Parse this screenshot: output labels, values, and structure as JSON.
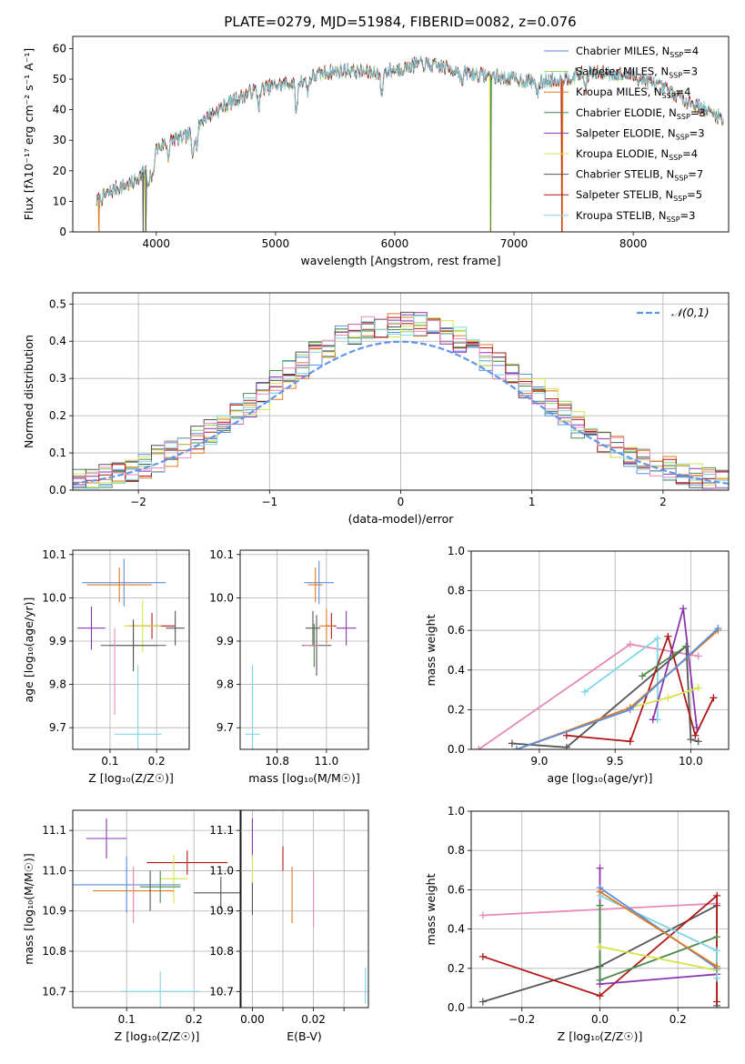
{
  "figure_title": "PLATE=0279, MJD=51984, FIBERID=0082, z=0.076",
  "colors": {
    "Chabrier MILES": "#5b8ee0",
    "Salpeter MILES": "#8bd46a",
    "Kroupa MILES": "#e07a1f",
    "Chabrier ELODIE": "#4c8a4c",
    "Salpeter ELODIE": "#8b35b0",
    "Kroupa ELODIE": "#d6e34a",
    "Chabrier STELIB": "#555555",
    "Salpeter STELIB": "#b01818",
    "Kroupa STELIB": "#7fd6e6",
    "Pink": "#e68ab8"
  },
  "chart_data": [
    {
      "id": "spectrum",
      "type": "line",
      "title": "PLATE=0279, MJD=51984, FIBERID=0082, z=0.076",
      "xlabel": "wavelength [Angstrom, rest frame]",
      "ylabel": "Flux [fλ10⁻¹⁷ erg cm⁻² s⁻¹ A⁻¹]",
      "xlim": [
        3300,
        8800
      ],
      "ylim": [
        0,
        64
      ],
      "xticks": [
        4000,
        5000,
        6000,
        7000,
        8000
      ],
      "yticks": [
        0,
        10,
        20,
        30,
        40,
        50,
        60
      ],
      "grid": false,
      "legend_position": "top-right",
      "legend": [
        {
          "key": "Chabrier MILES",
          "label": "Chabrier MILES, N",
          "sub": "SSP",
          "suffix": "=4"
        },
        {
          "key": "Salpeter MILES",
          "label": "Salpeter MILES, N",
          "sub": "SSP",
          "suffix": "=3"
        },
        {
          "key": "Kroupa MILES",
          "label": "Kroupa MILES, N",
          "sub": "SSP",
          "suffix": "=4"
        },
        {
          "key": "Chabrier ELODIE",
          "label": "Chabrier ELODIE, N",
          "sub": "SSP",
          "suffix": "=3"
        },
        {
          "key": "Salpeter ELODIE",
          "label": "Salpeter ELODIE, N",
          "sub": "SSP",
          "suffix": "=3"
        },
        {
          "key": "Kroupa ELODIE",
          "label": "Kroupa ELODIE, N",
          "sub": "SSP",
          "suffix": "=4"
        },
        {
          "key": "Chabrier STELIB",
          "label": "Chabrier STELIB, N",
          "sub": "SSP",
          "suffix": "=7"
        },
        {
          "key": "Salpeter STELIB",
          "label": "Salpeter STELIB, N",
          "sub": "SSP",
          "suffix": "=5"
        },
        {
          "key": "Kroupa STELIB",
          "label": "Kroupa STELIB, N",
          "sub": "SSP",
          "suffix": "=3"
        }
      ],
      "continuum": [
        [
          3500,
          10
        ],
        [
          3650,
          14
        ],
        [
          3800,
          16
        ],
        [
          3950,
          22
        ],
        [
          4000,
          27
        ],
        [
          4100,
          30
        ],
        [
          4250,
          31
        ],
        [
          4400,
          37
        ],
        [
          4600,
          42
        ],
        [
          4800,
          46
        ],
        [
          5000,
          48
        ],
        [
          5175,
          49
        ],
        [
          5400,
          52
        ],
        [
          5600,
          53
        ],
        [
          5800,
          52
        ],
        [
          6000,
          53
        ],
        [
          6200,
          55
        ],
        [
          6400,
          54
        ],
        [
          6600,
          52
        ],
        [
          6800,
          51
        ],
        [
          7000,
          50
        ],
        [
          7200,
          49
        ],
        [
          7400,
          50
        ],
        [
          7600,
          52
        ],
        [
          7800,
          52
        ],
        [
          8000,
          51
        ],
        [
          8200,
          48
        ],
        [
          8400,
          44
        ],
        [
          8600,
          40
        ],
        [
          8750,
          37
        ]
      ],
      "absorption_lines": [
        [
          3934,
          8
        ],
        [
          3969,
          7
        ],
        [
          4102,
          5
        ],
        [
          4304,
          8
        ],
        [
          4340,
          6
        ],
        [
          4861,
          5
        ],
        [
          5175,
          10
        ],
        [
          5270,
          4
        ],
        [
          5890,
          8
        ],
        [
          6563,
          4
        ],
        [
          7200,
          4
        ],
        [
          7600,
          5
        ]
      ],
      "dropouts": [
        {
          "series": "Kroupa MILES",
          "x": 3520
        },
        {
          "series": "Chabrier STELIB",
          "x": 3890
        },
        {
          "series": "Kroupa ELODIE",
          "x": 3910
        },
        {
          "series": "Chabrier STELIB",
          "x": 3912
        },
        {
          "series": "Kroupa ELODIE",
          "x": 6800
        },
        {
          "series": "Chabrier ELODIE",
          "x": 6805
        },
        {
          "series": "Salpeter STELIB",
          "x": 7400
        },
        {
          "series": "Kroupa MILES",
          "x": 7405
        }
      ]
    },
    {
      "id": "residuals",
      "type": "histogram",
      "xlabel": "(data-model)/error",
      "ylabel": "Normed distribution",
      "xlim": [
        -2.5,
        2.5
      ],
      "ylim": [
        0,
        0.53
      ],
      "xticks": [
        -2,
        -1,
        0,
        1,
        2
      ],
      "yticks": [
        0.0,
        0.1,
        0.2,
        0.3,
        0.4,
        0.5
      ],
      "grid": true,
      "bin_width": 0.1,
      "legend_position": "top-right",
      "gaussian": {
        "label": "𝒩(0,1)",
        "mean": 0,
        "sigma": 1
      }
    },
    {
      "id": "Z-age",
      "type": "errorbar",
      "xlabel": "Z [log₁₀(Z/Z☉)]",
      "ylabel": "age  [log₁₀(age/yr)]",
      "xlim": [
        0.02,
        0.27
      ],
      "ylim": [
        9.65,
        10.11
      ],
      "xticks": [
        0.1,
        0.2
      ],
      "yticks": [
        9.7,
        9.8,
        9.9,
        10.0,
        10.1
      ],
      "grid": true,
      "points": [
        {
          "series": "Chabrier MILES",
          "x": 0.13,
          "y": 10.035,
          "xerr": 0.09,
          "yerr": 0.055
        },
        {
          "series": "Kroupa MILES",
          "x": 0.12,
          "y": 10.03,
          "xerr": 0.07,
          "yerr": 0.04
        },
        {
          "series": "Chabrier STELIB",
          "x": 0.24,
          "y": 9.93,
          "xerr": 0.02,
          "yerr": 0.04
        },
        {
          "series": "Salpeter ELODIE",
          "x": 0.06,
          "y": 9.93,
          "xerr": 0.03,
          "yerr": 0.05
        },
        {
          "series": "Salpeter STELIB",
          "x": 0.19,
          "y": 9.935,
          "xerr": 0.05,
          "yerr": 0.03
        },
        {
          "series": "Kroupa ELODIE",
          "x": 0.17,
          "y": 9.935,
          "xerr": 0.04,
          "yerr": 0.06
        },
        {
          "series": "Chabrier ELODIE",
          "x": 0.15,
          "y": 9.89,
          "xerr": 0.05,
          "yerr": 0.05
        },
        {
          "series": "Chabrier STELIB",
          "x": 0.15,
          "y": 9.89,
          "xerr": 0.07,
          "yerr": 0.06
        },
        {
          "series": "Pink",
          "x": 0.11,
          "y": 9.83,
          "xerr": 0.0,
          "yerr": 0.1
        },
        {
          "series": "Kroupa STELIB",
          "x": 0.16,
          "y": 9.685,
          "xerr": 0.05,
          "yerr": 0.16
        }
      ]
    },
    {
      "id": "mass-age",
      "type": "errorbar",
      "xlabel": "mass [log₁₀(M/M☉)]",
      "ylabel": "",
      "xlim": [
        10.65,
        11.17
      ],
      "ylim": [
        9.65,
        10.11
      ],
      "xticks": [
        10.8,
        11.0
      ],
      "yticks": [
        9.7,
        9.8,
        9.9,
        10.0,
        10.1
      ],
      "grid": true,
      "points": [
        {
          "series": "Chabrier MILES",
          "x": 10.97,
          "y": 10.035,
          "xerr": 0.06,
          "yerr": 0.05
        },
        {
          "series": "Kroupa MILES",
          "x": 10.955,
          "y": 10.03,
          "xerr": 0.03,
          "yerr": 0.04
        },
        {
          "series": "Salpeter ELODIE",
          "x": 11.08,
          "y": 9.93,
          "xerr": 0.04,
          "yerr": 0.04
        },
        {
          "series": "Salpeter STELIB",
          "x": 11.02,
          "y": 9.935,
          "xerr": 0.02,
          "yerr": 0.03
        },
        {
          "series": "Kroupa MILES",
          "x": 11.0,
          "y": 9.935,
          "xerr": 0.03,
          "yerr": 0.04
        },
        {
          "series": "Chabrier STELIB",
          "x": 10.945,
          "y": 9.93,
          "xerr": 0.03,
          "yerr": 0.04
        },
        {
          "series": "Chabrier ELODIE",
          "x": 10.95,
          "y": 9.89,
          "xerr": 0.02,
          "yerr": 0.05
        },
        {
          "series": "Chabrier STELIB",
          "x": 10.96,
          "y": 9.89,
          "xerr": 0.06,
          "yerr": 0.07
        },
        {
          "series": "Pink",
          "x": 10.94,
          "y": 9.89,
          "xerr": 0.03,
          "yerr": 0.0
        },
        {
          "series": "Kroupa STELIB",
          "x": 10.7,
          "y": 9.685,
          "xerr": 0.03,
          "yerr": 0.16
        }
      ]
    },
    {
      "id": "age-massweight",
      "type": "line",
      "xlabel": "age  [log₁₀(age/yr)]",
      "ylabel": "mass weight",
      "xlim": [
        8.55,
        10.25
      ],
      "ylim": [
        0,
        1.0
      ],
      "xticks": [
        9.0,
        9.5,
        10.0
      ],
      "yticks": [
        0.0,
        0.2,
        0.4,
        0.6,
        0.8,
        1.0
      ],
      "grid": true,
      "series": [
        {
          "series": "Pink",
          "points": [
            [
              8.6,
              0.0
            ],
            [
              9.6,
              0.53
            ],
            [
              10.05,
              0.47
            ]
          ]
        },
        {
          "series": "Kroupa STELIB",
          "points": [
            [
              9.3,
              0.29
            ],
            [
              9.78,
              0.56
            ],
            [
              9.78,
              0.15
            ]
          ]
        },
        {
          "series": "Chabrier STELIB",
          "points": [
            [
              8.82,
              0.03
            ],
            [
              9.18,
              0.01
            ],
            [
              9.97,
              0.52
            ],
            [
              10.0,
              0.05
            ],
            [
              10.05,
              0.04
            ]
          ]
        },
        {
          "series": "Salpeter STELIB",
          "points": [
            [
              9.18,
              0.07
            ],
            [
              9.6,
              0.04
            ],
            [
              9.85,
              0.57
            ],
            [
              10.03,
              0.07
            ],
            [
              10.15,
              0.26
            ]
          ]
        },
        {
          "series": "Salpeter ELODIE",
          "points": [
            [
              9.75,
              0.15
            ],
            [
              9.95,
              0.71
            ],
            [
              10.04,
              0.11
            ]
          ]
        },
        {
          "series": "Chabrier ELODIE",
          "points": [
            [
              9.68,
              0.37
            ],
            [
              9.97,
              0.52
            ]
          ]
        },
        {
          "series": "Kroupa ELODIE",
          "points": [
            [
              9.6,
              0.21
            ],
            [
              9.85,
              0.26
            ],
            [
              10.05,
              0.31
            ]
          ]
        },
        {
          "series": "Kroupa MILES",
          "points": [
            [
              8.85,
              0.0
            ],
            [
              9.6,
              0.21
            ],
            [
              10.18,
              0.6
            ]
          ]
        },
        {
          "series": "Chabrier MILES",
          "points": [
            [
              8.85,
              0.0
            ],
            [
              9.6,
              0.2
            ],
            [
              10.18,
              0.61
            ]
          ]
        }
      ]
    },
    {
      "id": "Z-mass",
      "type": "errorbar",
      "xlabel": "Z [log₁₀(Z/Z☉)]",
      "ylabel": "mass [log₁₀(M/M☉)]",
      "xlim": [
        0.02,
        0.27
      ],
      "ylim": [
        10.66,
        11.15
      ],
      "xticks": [
        0.1,
        0.2
      ],
      "yticks": [
        10.7,
        10.8,
        10.9,
        11.0,
        11.1
      ],
      "grid": true,
      "points": [
        {
          "series": "Salpeter ELODIE",
          "x": 0.07,
          "y": 11.08,
          "xerr": 0.03,
          "yerr": 0.05
        },
        {
          "series": "Salpeter STELIB",
          "x": 0.19,
          "y": 11.02,
          "xerr": 0.06,
          "yerr": 0.03
        },
        {
          "series": "Kroupa ELODIE",
          "x": 0.17,
          "y": 10.98,
          "xerr": 0.02,
          "yerr": 0.06
        },
        {
          "series": "Chabrier MILES",
          "x": 0.1,
          "y": 10.965,
          "xerr": 0.08,
          "yerr": 0.07
        },
        {
          "series": "Kroupa MILES",
          "x": 0.11,
          "y": 10.95,
          "xerr": 0.06,
          "yerr": 0.05
        },
        {
          "series": "Chabrier STELIB",
          "x": 0.24,
          "y": 10.945,
          "xerr": 0.04,
          "yerr": 0.04
        },
        {
          "series": "Chabrier ELODIE",
          "x": 0.15,
          "y": 10.96,
          "xerr": 0.03,
          "yerr": 0.04
        },
        {
          "series": "Chabrier STELIB",
          "x": 0.135,
          "y": 10.95,
          "xerr": 0.0,
          "yerr": 0.05
        },
        {
          "series": "Pink",
          "x": 0.11,
          "y": 10.94,
          "xerr": 0.0,
          "yerr": 0.07
        },
        {
          "series": "Kroupa STELIB",
          "x": 0.15,
          "y": 10.7,
          "xerr": 0.06,
          "yerr": 0.05
        }
      ]
    },
    {
      "id": "EBV-mass",
      "type": "errorbar",
      "xlabel": "E(B-V)",
      "ylabel": "",
      "xlim": [
        -0.004,
        0.038
      ],
      "ylim": [
        10.66,
        11.15
      ],
      "xticks": [
        0.0,
        0.01,
        0.02,
        0.03
      ],
      "xticklabels": [
        "0.00",
        "",
        "0.02",
        ""
      ],
      "yticks": [
        10.7,
        10.8,
        10.9,
        11.0,
        11.1
      ],
      "grid": true,
      "points": [
        {
          "series": "Salpeter ELODIE",
          "x": 0.0,
          "y": 11.08,
          "xerr": 0.0,
          "yerr": 0.05
        },
        {
          "series": "Kroupa ELODIE",
          "x": 0.0,
          "y": 11.0,
          "xerr": 0.0,
          "yerr": 0.04
        },
        {
          "series": "Chabrier STELIB",
          "x": 0.0,
          "y": 10.93,
          "xerr": 0.0,
          "yerr": 0.04
        },
        {
          "series": "Salpeter STELIB",
          "x": 0.01,
          "y": 11.03,
          "xerr": 0.0,
          "yerr": 0.03
        },
        {
          "series": "Kroupa MILES",
          "x": 0.013,
          "y": 10.94,
          "xerr": 0.0,
          "yerr": 0.07
        },
        {
          "series": "Pink",
          "x": 0.02,
          "y": 10.93,
          "xerr": 0.0,
          "yerr": 0.07
        },
        {
          "series": "Kroupa STELIB",
          "x": 0.037,
          "y": 10.715,
          "xerr": 0.0,
          "yerr": 0.045
        }
      ]
    },
    {
      "id": "Z-massweight",
      "type": "line",
      "xlabel": "Z [log₁₀(Z/Z☉)]",
      "ylabel": "mass weight",
      "xlim": [
        -0.33,
        0.33
      ],
      "ylim": [
        0,
        1.0
      ],
      "xticks": [
        -0.2,
        0.0,
        0.2
      ],
      "yticks": [
        0.0,
        0.2,
        0.4,
        0.6,
        0.8,
        1.0
      ],
      "grid": true,
      "series": [
        {
          "series": "Pink",
          "points": [
            [
              -0.3,
              0.47
            ],
            [
              0.3,
              0.53
            ]
          ]
        },
        {
          "series": "Chabrier STELIB",
          "points": [
            [
              -0.3,
              0.03
            ],
            [
              0.0,
              0.21
            ],
            [
              0.3,
              0.52
            ],
            [
              0.3,
              0.01
            ]
          ]
        },
        {
          "series": "Salpeter STELIB",
          "points": [
            [
              -0.3,
              0.26
            ],
            [
              0.0,
              0.06
            ],
            [
              0.3,
              0.57
            ],
            [
              0.3,
              0.03
            ]
          ]
        },
        {
          "series": "Salpeter ELODIE",
          "points": [
            [
              0.0,
              0.71
            ],
            [
              0.0,
              0.12
            ],
            [
              0.3,
              0.17
            ]
          ]
        },
        {
          "series": "Chabrier ELODIE",
          "points": [
            [
              0.0,
              0.52
            ],
            [
              0.0,
              0.14
            ],
            [
              0.3,
              0.36
            ]
          ]
        },
        {
          "series": "Kroupa ELODIE",
          "points": [
            [
              0.0,
              0.31
            ],
            [
              0.3,
              0.19
            ]
          ]
        },
        {
          "series": "Kroupa STELIB",
          "points": [
            [
              0.0,
              0.57
            ],
            [
              0.3,
              0.29
            ],
            [
              0.3,
              0.15
            ]
          ]
        },
        {
          "series": "Chabrier MILES",
          "points": [
            [
              0.0,
              0.61
            ],
            [
              0.3,
              0.2
            ]
          ]
        },
        {
          "series": "Kroupa MILES",
          "points": [
            [
              0.0,
              0.59
            ],
            [
              0.3,
              0.21
            ]
          ]
        }
      ]
    }
  ]
}
